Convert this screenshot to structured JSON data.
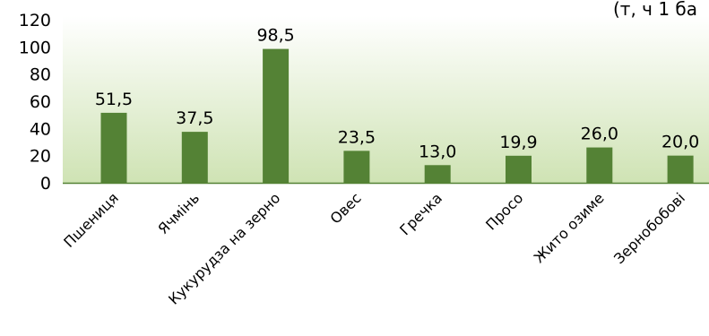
{
  "unit_note": "(т, ч 1 ба",
  "colors": {
    "bar": "#548235",
    "axis": "#548235",
    "plot_bg_top": "#ffffff",
    "plot_bg_bottom": "#cfe3b4",
    "text": "#000000"
  },
  "chart_data": {
    "type": "bar",
    "title": "",
    "xlabel": "",
    "ylabel": "",
    "categories": [
      "Пшениця",
      "Ячмінь",
      "Кукурудза на зерно",
      "Овес",
      "Гречка",
      "Просо",
      "Жито озиме",
      "Зернобобові"
    ],
    "values": [
      51.5,
      37.5,
      98.5,
      23.5,
      13.0,
      19.9,
      26.0,
      20.0
    ],
    "data_labels": [
      "51,5",
      "37,5",
      "98,5",
      "23,5",
      "13,0",
      "19,9",
      "26,0",
      "20,0"
    ],
    "yticks": [
      0,
      20,
      40,
      60,
      80,
      100,
      120
    ],
    "ylim": [
      0,
      120
    ],
    "grid": false,
    "legend": "none"
  }
}
